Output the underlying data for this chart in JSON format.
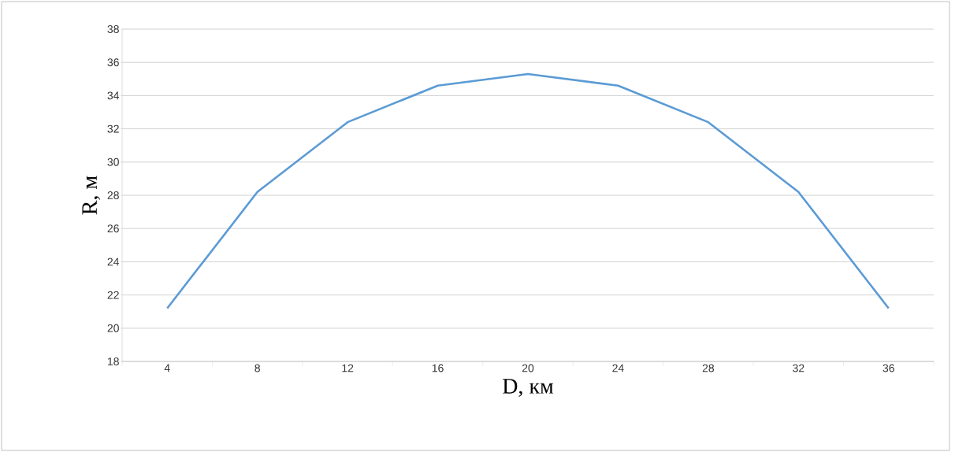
{
  "chart_data": {
    "type": "line",
    "xlabel": "D, км",
    "ylabel": "R, м",
    "categories": [
      "4",
      "8",
      "12",
      "16",
      "20",
      "24",
      "28",
      "32",
      "36"
    ],
    "series": [
      {
        "color": "#5b9bd5",
        "values": [
          21.2,
          28.2,
          32.4,
          34.6,
          35.3,
          34.6,
          32.4,
          28.2,
          21.2
        ]
      }
    ],
    "ylim": [
      18,
      38
    ],
    "yticks": [
      18,
      20,
      22,
      24,
      26,
      28,
      30,
      32,
      34,
      36,
      38
    ],
    "grid": "y"
  }
}
